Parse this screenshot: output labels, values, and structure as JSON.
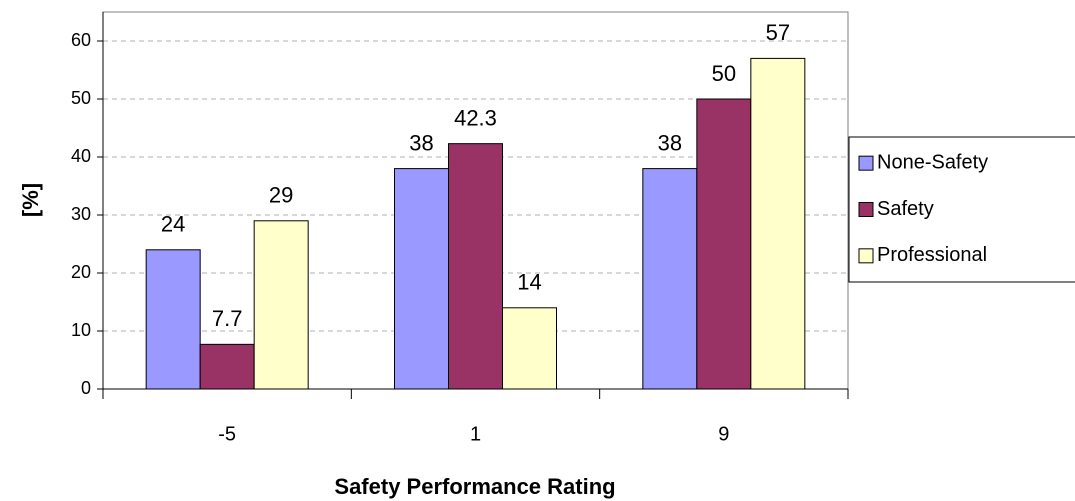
{
  "chart_data": {
    "type": "bar",
    "x_label": "Safety Performance Rating",
    "y_label": "[%]",
    "categories": [
      "-5",
      "1",
      "9"
    ],
    "series": [
      {
        "name": "None-Safety",
        "color": "#9999ff",
        "values": [
          24,
          38,
          38
        ]
      },
      {
        "name": "Safety",
        "color": "#993366",
        "values": [
          7.7,
          42.3,
          50
        ]
      },
      {
        "name": "Professional",
        "color": "#ffffcc",
        "values": [
          29,
          14,
          57
        ]
      }
    ],
    "ylim": [
      0,
      65
    ],
    "yticks": [
      0,
      10,
      20,
      30,
      40,
      50,
      60
    ],
    "grid": true,
    "legend": "right"
  }
}
